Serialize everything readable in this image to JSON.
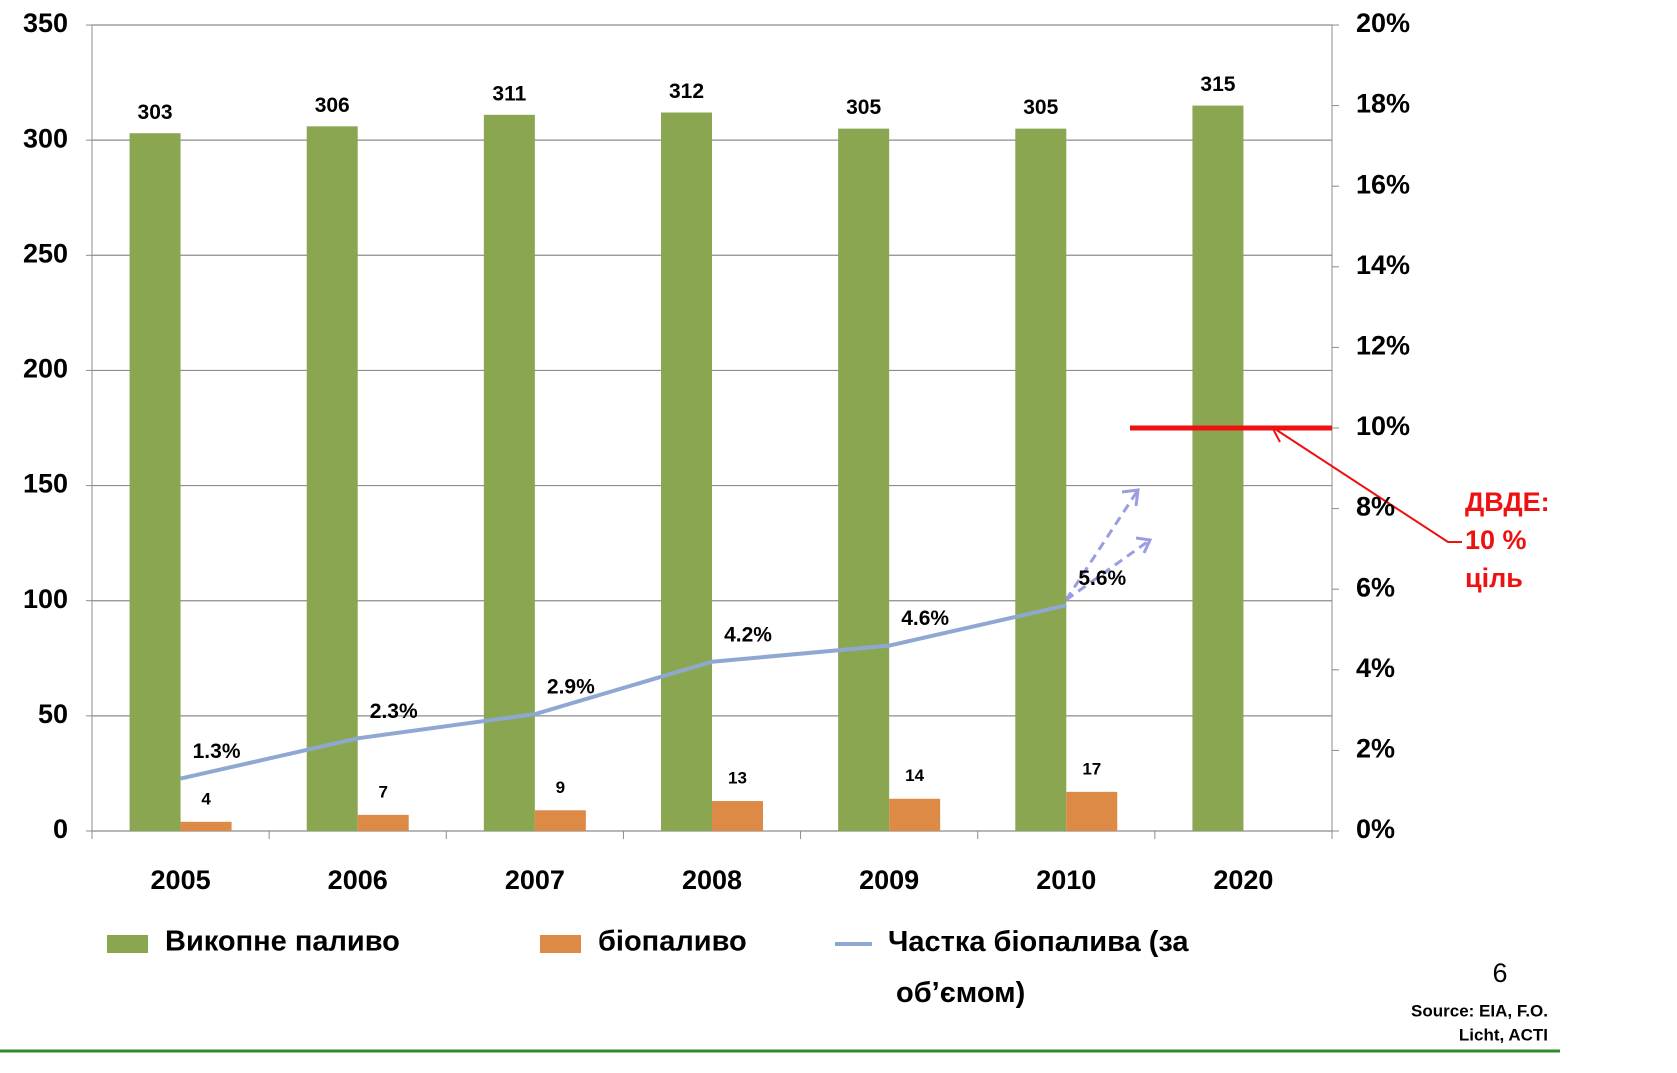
{
  "chart_data": {
    "type": "bar",
    "categories": [
      "2005",
      "2006",
      "2007",
      "2008",
      "2009",
      "2010",
      "2020"
    ],
    "series": [
      {
        "name": "Викопне паливо",
        "color": "#8aa650",
        "values": [
          303,
          306,
          311,
          312,
          305,
          305,
          315
        ]
      },
      {
        "name": "біопаливо",
        "color": "#dd8a46",
        "values": [
          4,
          7,
          9,
          13,
          14,
          17,
          null
        ]
      },
      {
        "name": "Частка біопалива (за об’ємом)",
        "type": "line",
        "axis": "y2",
        "color": "#8fa8d2",
        "values": [
          1.3,
          2.3,
          2.9,
          4.2,
          4.6,
          5.6,
          null
        ],
        "value_labels": [
          "1.3%",
          "2.3%",
          "2.9%",
          "4.2%",
          "4.6%",
          "5.6%",
          null
        ]
      }
    ],
    "ylim": [
      0,
      350
    ],
    "yticks": [
      0,
      50,
      100,
      150,
      200,
      250,
      300,
      350
    ],
    "y2lim": [
      0,
      20
    ],
    "y2ticks": [
      {
        "value": 0,
        "label": "0%"
      },
      {
        "value": 2,
        "label": "2%"
      },
      {
        "value": 4,
        "label": "4%"
      },
      {
        "value": 6,
        "label": "6%"
      },
      {
        "value": 8,
        "label": "8%"
      },
      {
        "value": 10,
        "label": "10%"
      },
      {
        "value": 12,
        "label": "12%"
      },
      {
        "value": 14,
        "label": "14%"
      },
      {
        "value": 16,
        "label": "16%"
      },
      {
        "value": 18,
        "label": "18%"
      },
      {
        "value": 20,
        "label": "20%"
      }
    ],
    "grid": true,
    "target": {
      "value": 10,
      "color": "#ee1111",
      "label": [
        "ДВДЕ:",
        "10 %",
        "ціль"
      ]
    },
    "page_number": "6",
    "source": [
      "Source: EIA, F.O.",
      "Licht, ACTI"
    ]
  }
}
